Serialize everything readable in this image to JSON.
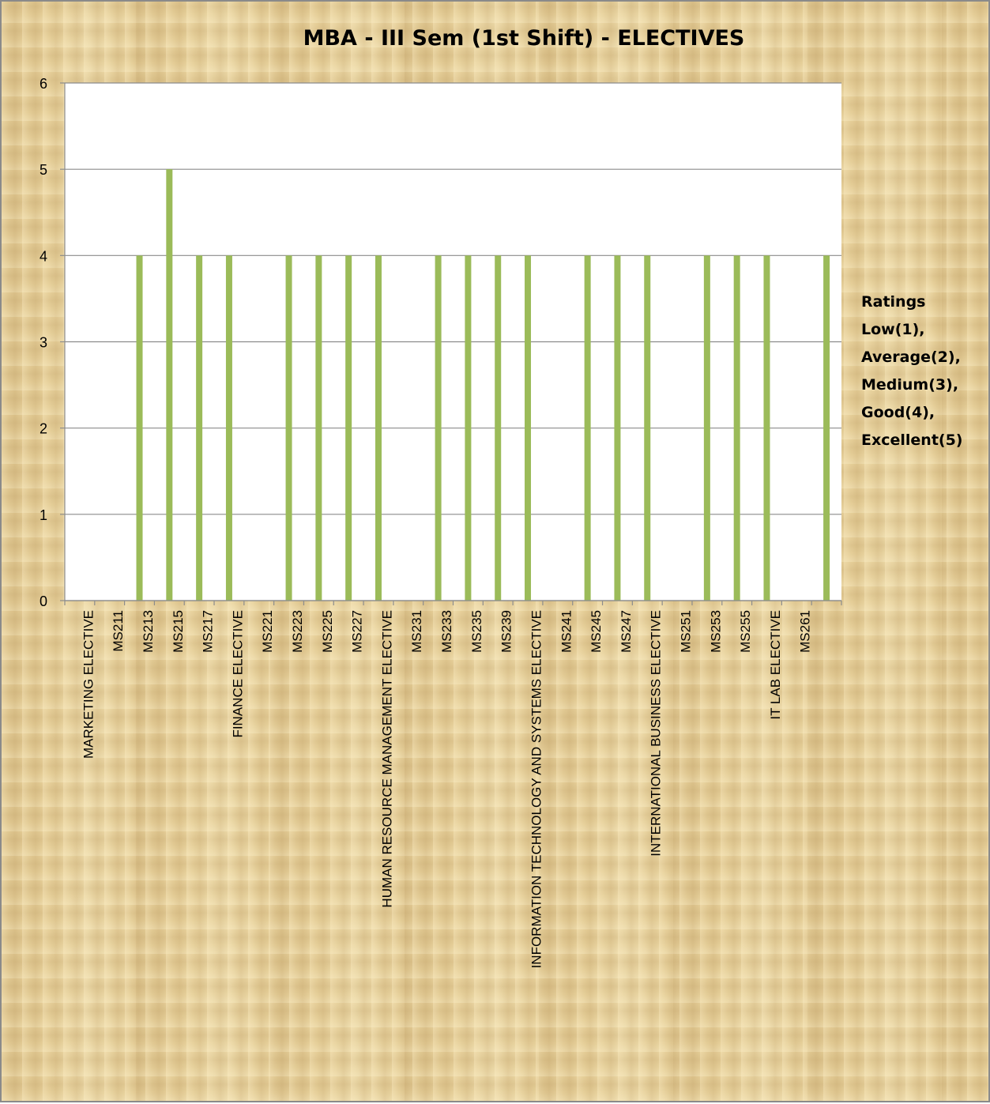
{
  "chart_data": {
    "type": "bar",
    "title": "MBA - III Sem (1st Shift) - ELECTIVES",
    "xlabel": "",
    "ylabel": "",
    "ylim": [
      0,
      6
    ],
    "yticks": [
      0,
      1,
      2,
      3,
      4,
      5,
      6
    ],
    "grid": true,
    "bar_color": "#9bbb59",
    "categories": [
      "MARKETING ELECTIVE",
      "MS211",
      "MS213",
      "MS215",
      "MS217",
      "FINANCE ELECTIVE",
      "MS221",
      "MS223",
      "MS225",
      "MS227",
      "HUMAN RESOURCE MANAGEMENT ELECTIVE",
      "MS231",
      "MS233",
      "MS235",
      "MS239",
      "INFORMATION TECHNOLOGY AND SYSTEMS ELECTIVE",
      "MS241",
      "MS245",
      "MS247",
      "INTERNATIONAL BUSINESS ELECTIVE",
      "MS251",
      "MS253",
      "MS255",
      "IT LAB ELECTIVE",
      "MS261"
    ],
    "values": [
      null,
      4,
      5,
      4,
      4,
      null,
      4,
      4,
      4,
      4,
      null,
      4,
      4,
      4,
      4,
      null,
      4,
      4,
      4,
      null,
      4,
      4,
      4,
      null,
      4
    ],
    "legend_lines": [
      "Ratings",
      "Low(1),",
      "Average(2),",
      "Medium(3),",
      "Good(4),",
      "Excellent(5)"
    ]
  }
}
